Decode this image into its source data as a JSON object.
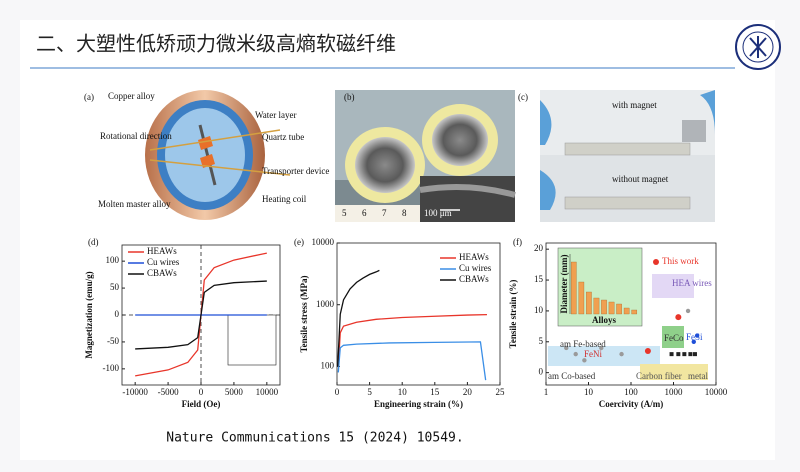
{
  "title": "二、大塑性低矫顽力微米级高熵软磁纤维",
  "citation": "Nature Communications 15 (2024) 10549.",
  "panels": {
    "a": {
      "label": "(a)",
      "parts": [
        "Copper alloy",
        "Rotational direction",
        "Molten master alloy",
        "Water layer",
        "Quartz tube",
        "Transporter device",
        "Heating coil"
      ]
    },
    "b": {
      "label": "(b)",
      "ruler": [
        "5",
        "6",
        "7",
        "8"
      ],
      "scale_bar": "100 μm"
    },
    "c": {
      "label": "(c)",
      "top": "with magnet",
      "bottom": "without magnet"
    }
  },
  "chart_data": [
    {
      "type": "line",
      "label": "(d)",
      "xlabel": "Field (Oe)",
      "ylabel": "Magnetization (emu/g)",
      "xlim": [
        -12000,
        12000
      ],
      "xticks": [
        -10000,
        -5000,
        0,
        5000,
        10000
      ],
      "ylim": [
        -130,
        130
      ],
      "yticks": [
        -100,
        -50,
        0,
        50,
        100
      ],
      "series": [
        {
          "name": "HEAWs",
          "color": "#e8352a",
          "x": [
            -10000,
            -5000,
            -2000,
            -500,
            0,
            500,
            2000,
            5000,
            10000
          ],
          "values": [
            -113,
            -102,
            -88,
            -65,
            0,
            65,
            88,
            102,
            115
          ]
        },
        {
          "name": "Cu wires",
          "color": "#1f4fd8",
          "x": [
            -10000,
            -5000,
            0,
            5000,
            10000
          ],
          "values": [
            0,
            0,
            0,
            0,
            0
          ]
        },
        {
          "name": "CBAWs",
          "color": "#111111",
          "x": [
            -10000,
            -5000,
            -2000,
            -500,
            0,
            500,
            2000,
            5000,
            10000
          ],
          "values": [
            -63,
            -60,
            -55,
            -42,
            0,
            42,
            55,
            60,
            63
          ]
        }
      ]
    },
    {
      "type": "line",
      "label": "(e)",
      "xlabel": "Engineering strain (%)",
      "ylabel": "Tensile stress (MPa)",
      "ylog": true,
      "xlim": [
        0,
        25
      ],
      "xticks": [
        0,
        5,
        10,
        15,
        20,
        25
      ],
      "ylim": [
        50,
        10000
      ],
      "yticks": [
        100,
        1000,
        10000
      ],
      "series": [
        {
          "name": "HEAWs",
          "color": "#e8352a",
          "x": [
            0.2,
            0.5,
            1,
            3,
            6,
            10,
            15,
            20,
            23
          ],
          "values": [
            100,
            350,
            450,
            520,
            580,
            620,
            650,
            680,
            690
          ]
        },
        {
          "name": "Cu wires",
          "color": "#3a8ee6",
          "x": [
            0.2,
            0.5,
            1,
            3,
            8,
            15,
            22,
            22.8
          ],
          "values": [
            80,
            200,
            220,
            230,
            240,
            245,
            250,
            60
          ]
        },
        {
          "name": "CBAWs",
          "color": "#111111",
          "x": [
            0.1,
            0.5,
            1,
            2,
            3,
            4,
            5,
            6,
            6.5
          ],
          "values": [
            100,
            700,
            1200,
            1800,
            2300,
            2700,
            3100,
            3400,
            3600
          ]
        }
      ]
    },
    {
      "type": "scatter",
      "label": "(f)",
      "xlabel": "Coercivity (A/m)",
      "ylabel": "Tensile strain (%)",
      "xlog": true,
      "xlim": [
        1,
        10000
      ],
      "xticks": [
        1,
        10,
        100,
        1000,
        10000
      ],
      "ylim": [
        -2,
        21
      ],
      "yticks": [
        0,
        5,
        10,
        15,
        20
      ],
      "annotations": [
        "HEA wires",
        "am Fe-based",
        "FeCo",
        "FeSi",
        "FeNi",
        "am Co-based",
        "Carbon fiber",
        "metal"
      ],
      "series": [
        {
          "name": "This work",
          "color": "#e8352a",
          "x": [
            1300,
            250
          ],
          "values": [
            9,
            3.5
          ]
        },
        {
          "color": "#222222",
          "x": [
            900,
            1300,
            1800,
            2500,
            3200
          ],
          "values": [
            3,
            3,
            3,
            3,
            3
          ]
        },
        {
          "color": "#1f4fd8",
          "x": [
            3000,
            3600
          ],
          "values": [
            5,
            6
          ]
        },
        {
          "color": "#9a9a9a",
          "x": [
            3,
            5,
            8,
            20,
            60,
            2200
          ],
          "values": [
            4,
            3,
            2,
            4,
            3,
            10
          ]
        }
      ]
    },
    {
      "type": "bar",
      "xlabel": "Alloys",
      "ylabel": "Diameter (mm)",
      "ylim": [
        0,
        30
      ],
      "values": [
        26,
        16,
        11,
        8,
        7,
        6,
        5,
        3,
        2
      ],
      "color": "#f0a050"
    }
  ]
}
